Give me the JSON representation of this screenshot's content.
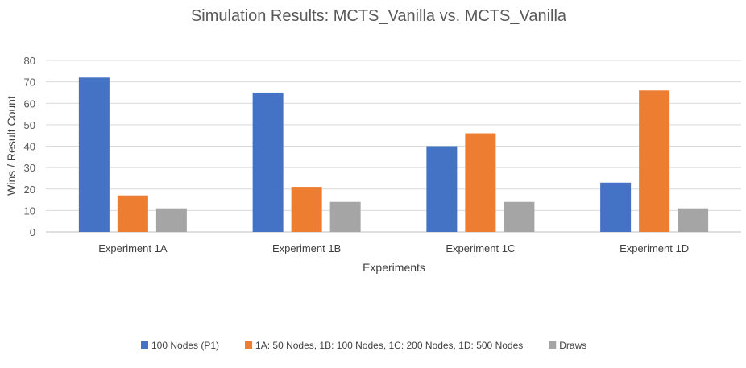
{
  "chart_data": {
    "type": "bar",
    "title": "Simulation Results: MCTS_Vanilla vs. MCTS_Vanilla",
    "xlabel": "Experiments",
    "ylabel": "Wins / Result Count",
    "ylim": [
      0,
      80
    ],
    "yticks": [
      0,
      10,
      20,
      30,
      40,
      50,
      60,
      70,
      80
    ],
    "grid": true,
    "legend_position": "bottom",
    "categories": [
      "Experiment 1A",
      "Experiment 1B",
      "Experiment 1C",
      "Experiment 1D"
    ],
    "series": [
      {
        "name": "100 Nodes (P1)",
        "color": "#4472C4",
        "values": [
          72,
          65,
          40,
          23
        ]
      },
      {
        "name": "1A: 50 Nodes, 1B: 100 Nodes, 1C: 200 Nodes, 1D: 500 Nodes",
        "color": "#ED7D31",
        "values": [
          17,
          21,
          46,
          66
        ]
      },
      {
        "name": "Draws",
        "color": "#A5A5A5",
        "values": [
          11,
          14,
          14,
          11
        ]
      }
    ]
  }
}
